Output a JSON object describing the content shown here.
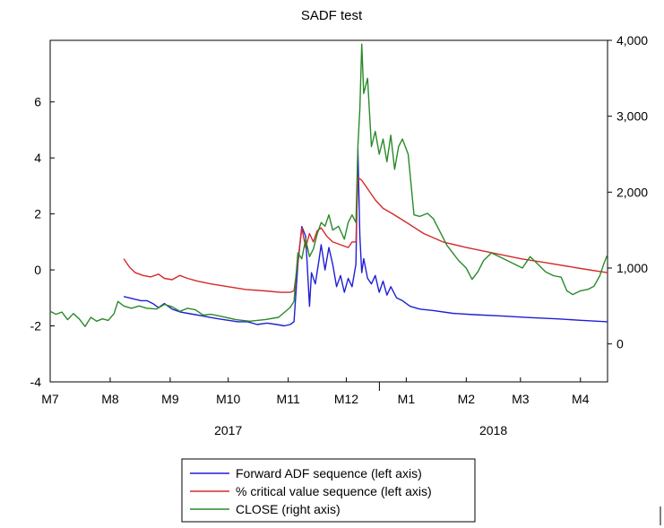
{
  "chart_data": {
    "type": "line",
    "title": "SADF test",
    "xlabel": "",
    "ylabel_left": "",
    "ylabel_right": "",
    "x_start": "2017-07-01",
    "x_end": "2018-04-15",
    "month_ticks": [
      {
        "label": "M7",
        "date": "2017-07-01"
      },
      {
        "label": "M8",
        "date": "2017-08-01"
      },
      {
        "label": "M9",
        "date": "2017-09-01"
      },
      {
        "label": "M10",
        "date": "2017-10-01"
      },
      {
        "label": "M11",
        "date": "2017-11-01"
      },
      {
        "label": "M12",
        "date": "2017-12-01"
      },
      {
        "label": "M1",
        "date": "2018-01-01"
      },
      {
        "label": "M2",
        "date": "2018-02-01"
      },
      {
        "label": "M3",
        "date": "2018-03-01"
      },
      {
        "label": "M4",
        "date": "2018-04-01"
      }
    ],
    "year_labels": [
      {
        "label": "2017",
        "date": "2017-10-01"
      },
      {
        "label": "2018",
        "date": "2018-02-15"
      }
    ],
    "left_axis": {
      "ylim": [
        -4,
        8.2
      ],
      "ticks": [
        -4,
        -2,
        0,
        2,
        4,
        6
      ],
      "tick_labels": [
        "-4",
        "-2",
        "0",
        "2",
        "4",
        "6"
      ]
    },
    "right_axis": {
      "ylim": [
        -500,
        4000
      ],
      "ticks": [
        0,
        1000,
        2000,
        3000,
        4000
      ],
      "tick_labels": [
        "0",
        "1,000",
        "2,000",
        "3,000",
        "4,000"
      ]
    },
    "legend": {
      "position": "bottom-center"
    },
    "series": [
      {
        "name": "Forward ADF sequence (left axis)",
        "axis": "left",
        "color": "#1f1fd6",
        "points": [
          [
            "2017-08-08",
            -0.95
          ],
          [
            "2017-08-11",
            -1.0
          ],
          [
            "2017-08-14",
            -1.05
          ],
          [
            "2017-08-17",
            -1.1
          ],
          [
            "2017-08-20",
            -1.1
          ],
          [
            "2017-08-23",
            -1.2
          ],
          [
            "2017-08-26",
            -1.35
          ],
          [
            "2017-08-29",
            -1.2
          ],
          [
            "2017-09-02",
            -1.4
          ],
          [
            "2017-09-06",
            -1.5
          ],
          [
            "2017-09-10",
            -1.55
          ],
          [
            "2017-09-14",
            -1.6
          ],
          [
            "2017-09-18",
            -1.65
          ],
          [
            "2017-09-22",
            -1.7
          ],
          [
            "2017-09-26",
            -1.75
          ],
          [
            "2017-10-01",
            -1.8
          ],
          [
            "2017-10-06",
            -1.85
          ],
          [
            "2017-10-11",
            -1.85
          ],
          [
            "2017-10-16",
            -1.95
          ],
          [
            "2017-10-21",
            -1.9
          ],
          [
            "2017-10-26",
            -1.95
          ],
          [
            "2017-10-30",
            -2.0
          ],
          [
            "2017-11-02",
            -1.95
          ],
          [
            "2017-11-04",
            -1.85
          ],
          [
            "2017-11-06",
            0.2
          ],
          [
            "2017-11-08",
            1.55
          ],
          [
            "2017-11-10",
            1.2
          ],
          [
            "2017-11-12",
            -1.3
          ],
          [
            "2017-11-13",
            -0.1
          ],
          [
            "2017-11-15",
            -0.5
          ],
          [
            "2017-11-17",
            0.4
          ],
          [
            "2017-11-18",
            0.9
          ],
          [
            "2017-11-20",
            0.0
          ],
          [
            "2017-11-22",
            0.8
          ],
          [
            "2017-11-24",
            0.2
          ],
          [
            "2017-11-26",
            -0.6
          ],
          [
            "2017-11-28",
            -0.2
          ],
          [
            "2017-11-30",
            -0.8
          ],
          [
            "2017-12-02",
            -0.3
          ],
          [
            "2017-12-04",
            -0.6
          ],
          [
            "2017-12-06",
            0.2
          ],
          [
            "2017-12-07",
            4.3
          ],
          [
            "2017-12-08",
            1.2
          ],
          [
            "2017-12-09",
            -0.1
          ],
          [
            "2017-12-10",
            0.4
          ],
          [
            "2017-12-12",
            -0.3
          ],
          [
            "2017-12-14",
            -0.5
          ],
          [
            "2017-12-16",
            -0.2
          ],
          [
            "2017-12-18",
            -0.8
          ],
          [
            "2017-12-20",
            -0.4
          ],
          [
            "2017-12-22",
            -0.9
          ],
          [
            "2017-12-24",
            -0.6
          ],
          [
            "2017-12-27",
            -1.0
          ],
          [
            "2017-12-30",
            -1.1
          ],
          [
            "2018-01-03",
            -1.3
          ],
          [
            "2018-01-08",
            -1.4
          ],
          [
            "2018-01-15",
            -1.45
          ],
          [
            "2018-01-25",
            -1.55
          ],
          [
            "2018-02-05",
            -1.6
          ],
          [
            "2018-02-20",
            -1.65
          ],
          [
            "2018-03-05",
            -1.7
          ],
          [
            "2018-03-20",
            -1.75
          ],
          [
            "2018-04-01",
            -1.8
          ],
          [
            "2018-04-15",
            -1.85
          ]
        ]
      },
      {
        "name": "% critical value sequence (left axis)",
        "axis": "left",
        "color": "#d42a2a",
        "points": [
          [
            "2017-08-08",
            0.4
          ],
          [
            "2017-08-11",
            0.1
          ],
          [
            "2017-08-14",
            -0.1
          ],
          [
            "2017-08-18",
            -0.2
          ],
          [
            "2017-08-22",
            -0.25
          ],
          [
            "2017-08-26",
            -0.15
          ],
          [
            "2017-08-29",
            -0.3
          ],
          [
            "2017-09-02",
            -0.35
          ],
          [
            "2017-09-06",
            -0.2
          ],
          [
            "2017-09-10",
            -0.3
          ],
          [
            "2017-09-15",
            -0.4
          ],
          [
            "2017-09-22",
            -0.5
          ],
          [
            "2017-10-01",
            -0.6
          ],
          [
            "2017-10-10",
            -0.7
          ],
          [
            "2017-10-20",
            -0.75
          ],
          [
            "2017-10-28",
            -0.8
          ],
          [
            "2017-11-02",
            -0.8
          ],
          [
            "2017-11-04",
            -0.75
          ],
          [
            "2017-11-06",
            0.3
          ],
          [
            "2017-11-08",
            1.5
          ],
          [
            "2017-11-10",
            0.8
          ],
          [
            "2017-11-12",
            1.3
          ],
          [
            "2017-11-14",
            1.0
          ],
          [
            "2017-11-16",
            1.4
          ],
          [
            "2017-11-18",
            1.5
          ],
          [
            "2017-11-21",
            1.2
          ],
          [
            "2017-11-24",
            1.0
          ],
          [
            "2017-11-28",
            0.9
          ],
          [
            "2017-12-02",
            0.8
          ],
          [
            "2017-12-04",
            1.0
          ],
          [
            "2017-12-06",
            1.0
          ],
          [
            "2017-12-07",
            3.3
          ],
          [
            "2017-12-09",
            3.2
          ],
          [
            "2017-12-12",
            2.9
          ],
          [
            "2017-12-16",
            2.5
          ],
          [
            "2017-12-20",
            2.2
          ],
          [
            "2017-12-25",
            2.0
          ],
          [
            "2018-01-01",
            1.7
          ],
          [
            "2018-01-10",
            1.3
          ],
          [
            "2018-01-20",
            1.0
          ],
          [
            "2018-02-01",
            0.8
          ],
          [
            "2018-02-15",
            0.6
          ],
          [
            "2018-03-01",
            0.4
          ],
          [
            "2018-03-15",
            0.25
          ],
          [
            "2018-04-01",
            0.05
          ],
          [
            "2018-04-15",
            -0.1
          ]
        ]
      },
      {
        "name": "CLOSE (right axis)",
        "axis": "right",
        "color": "#2a8a2a",
        "points": [
          [
            "2017-07-01",
            430
          ],
          [
            "2017-07-04",
            390
          ],
          [
            "2017-07-07",
            420
          ],
          [
            "2017-07-10",
            320
          ],
          [
            "2017-07-13",
            400
          ],
          [
            "2017-07-16",
            330
          ],
          [
            "2017-07-19",
            230
          ],
          [
            "2017-07-22",
            350
          ],
          [
            "2017-07-25",
            300
          ],
          [
            "2017-07-28",
            330
          ],
          [
            "2017-07-31",
            310
          ],
          [
            "2017-08-03",
            400
          ],
          [
            "2017-08-05",
            560
          ],
          [
            "2017-08-08",
            500
          ],
          [
            "2017-08-12",
            470
          ],
          [
            "2017-08-16",
            500
          ],
          [
            "2017-08-20",
            470
          ],
          [
            "2017-08-25",
            460
          ],
          [
            "2017-08-29",
            520
          ],
          [
            "2017-09-02",
            490
          ],
          [
            "2017-09-06",
            430
          ],
          [
            "2017-09-10",
            470
          ],
          [
            "2017-09-14",
            450
          ],
          [
            "2017-09-18",
            380
          ],
          [
            "2017-09-22",
            390
          ],
          [
            "2017-09-28",
            360
          ],
          [
            "2017-10-05",
            320
          ],
          [
            "2017-10-12",
            300
          ],
          [
            "2017-10-20",
            320
          ],
          [
            "2017-10-27",
            350
          ],
          [
            "2017-11-02",
            480
          ],
          [
            "2017-11-04",
            560
          ],
          [
            "2017-11-06",
            1200
          ],
          [
            "2017-11-08",
            1120
          ],
          [
            "2017-11-10",
            1380
          ],
          [
            "2017-11-12",
            1150
          ],
          [
            "2017-11-14",
            1250
          ],
          [
            "2017-11-16",
            1450
          ],
          [
            "2017-11-18",
            1600
          ],
          [
            "2017-11-20",
            1550
          ],
          [
            "2017-11-22",
            1700
          ],
          [
            "2017-11-24",
            1500
          ],
          [
            "2017-11-27",
            1550
          ],
          [
            "2017-11-30",
            1380
          ],
          [
            "2017-12-02",
            1600
          ],
          [
            "2017-12-04",
            1700
          ],
          [
            "2017-12-06",
            1600
          ],
          [
            "2017-12-07",
            2600
          ],
          [
            "2017-12-08",
            3100
          ],
          [
            "2017-12-09",
            3950
          ],
          [
            "2017-12-10",
            3300
          ],
          [
            "2017-12-12",
            3500
          ],
          [
            "2017-12-14",
            2600
          ],
          [
            "2017-12-16",
            2800
          ],
          [
            "2017-12-18",
            2500
          ],
          [
            "2017-12-20",
            2700
          ],
          [
            "2017-12-22",
            2400
          ],
          [
            "2017-12-24",
            2750
          ],
          [
            "2017-12-26",
            2300
          ],
          [
            "2017-12-28",
            2600
          ],
          [
            "2017-12-30",
            2700
          ],
          [
            "2018-01-02",
            2500
          ],
          [
            "2018-01-05",
            1700
          ],
          [
            "2018-01-08",
            1680
          ],
          [
            "2018-01-12",
            1720
          ],
          [
            "2018-01-15",
            1650
          ],
          [
            "2018-01-18",
            1500
          ],
          [
            "2018-01-22",
            1300
          ],
          [
            "2018-01-25",
            1200
          ],
          [
            "2018-01-28",
            1100
          ],
          [
            "2018-02-01",
            1000
          ],
          [
            "2018-02-04",
            850
          ],
          [
            "2018-02-07",
            950
          ],
          [
            "2018-02-10",
            1100
          ],
          [
            "2018-02-14",
            1200
          ],
          [
            "2018-02-18",
            1150
          ],
          [
            "2018-02-22",
            1100
          ],
          [
            "2018-02-26",
            1050
          ],
          [
            "2018-03-02",
            1000
          ],
          [
            "2018-03-06",
            1150
          ],
          [
            "2018-03-10",
            1050
          ],
          [
            "2018-03-14",
            950
          ],
          [
            "2018-03-18",
            900
          ],
          [
            "2018-03-22",
            880
          ],
          [
            "2018-03-25",
            700
          ],
          [
            "2018-03-28",
            650
          ],
          [
            "2018-04-01",
            700
          ],
          [
            "2018-04-05",
            720
          ],
          [
            "2018-04-08",
            760
          ],
          [
            "2018-04-11",
            900
          ],
          [
            "2018-04-13",
            1050
          ],
          [
            "2018-04-15",
            1180
          ]
        ]
      }
    ]
  }
}
